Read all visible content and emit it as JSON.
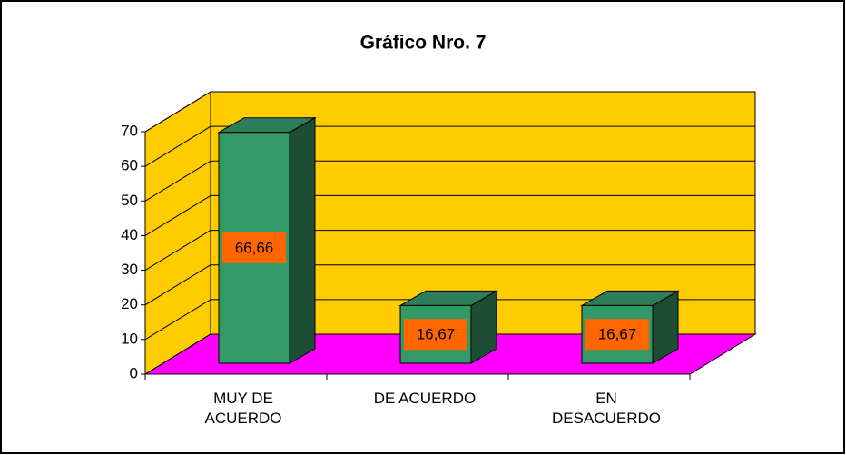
{
  "chart_data": {
    "type": "bar3d",
    "title": "Gráfico Nro. 7",
    "categories": [
      "MUY DE ACUERDO",
      "DE ACUERDO",
      "EN DESACUERDO"
    ],
    "values": [
      66.66,
      16.67,
      16.67
    ],
    "value_labels": [
      "66,66",
      "16,67",
      "16,67"
    ],
    "color": "#339966",
    "wall_color": "#ffcc00",
    "floor_color": "#ff00ff",
    "label_box_color": "#ff6600",
    "ylim": [
      0,
      70
    ],
    "yticks": [
      0,
      10,
      20,
      30,
      40,
      50,
      60,
      70
    ],
    "grid": true
  }
}
